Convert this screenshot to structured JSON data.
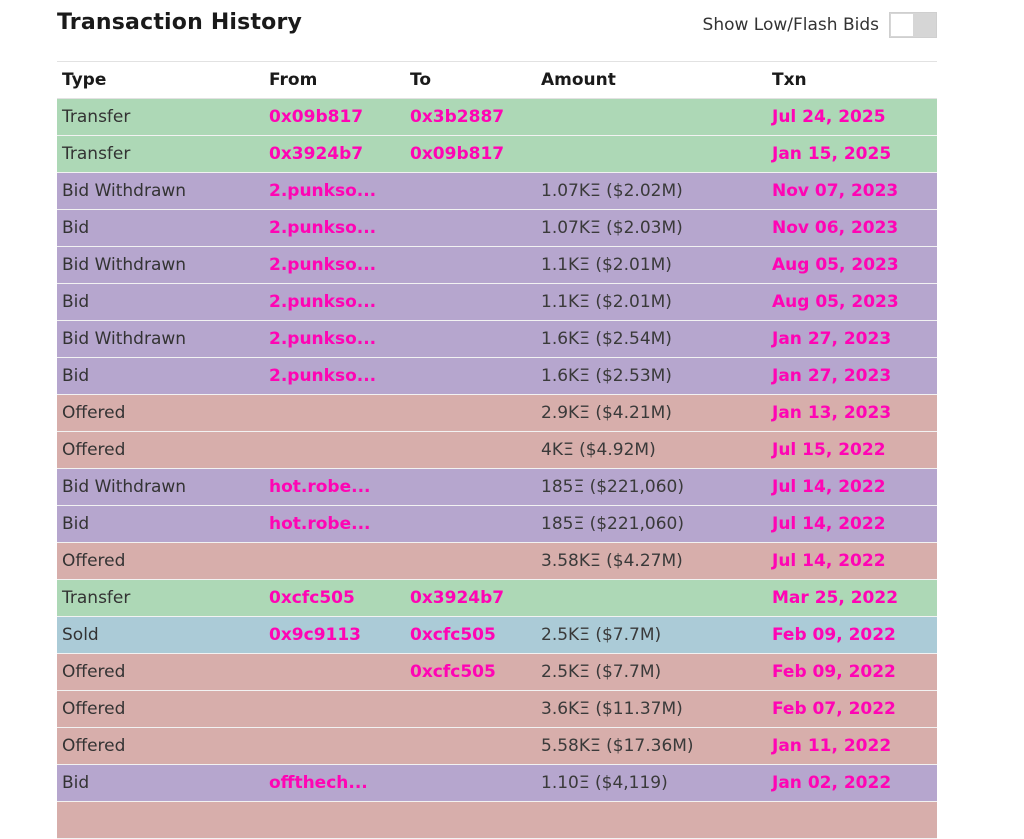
{
  "header": {
    "title": "Transaction History",
    "toggle_label": "Show Low/Flash Bids"
  },
  "table": {
    "columns": [
      "Type",
      "From",
      "To",
      "Amount",
      "Txn"
    ],
    "rows": [
      {
        "type": "Transfer",
        "from": "0x09b817",
        "to": "0x3b2887",
        "amount": "",
        "txn": "Jul 24, 2025",
        "color": "#add8b6"
      },
      {
        "type": "Transfer",
        "from": "0x3924b7",
        "to": "0x09b817",
        "amount": "",
        "txn": "Jan 15, 2025",
        "color": "#add8b6"
      },
      {
        "type": "Bid Withdrawn",
        "from": "2.punkso...",
        "to": "",
        "amount": "1.07KΞ ($2.02M)",
        "txn": "Nov 07, 2023",
        "color": "#b6a6ce"
      },
      {
        "type": "Bid",
        "from": "2.punkso...",
        "to": "",
        "amount": "1.07KΞ ($2.03M)",
        "txn": "Nov 06, 2023",
        "color": "#b6a6ce"
      },
      {
        "type": "Bid Withdrawn",
        "from": "2.punkso...",
        "to": "",
        "amount": "1.1KΞ ($2.01M)",
        "txn": "Aug 05, 2023",
        "color": "#b6a6ce"
      },
      {
        "type": "Bid",
        "from": "2.punkso...",
        "to": "",
        "amount": "1.1KΞ ($2.01M)",
        "txn": "Aug 05, 2023",
        "color": "#b6a6ce"
      },
      {
        "type": "Bid Withdrawn",
        "from": "2.punkso...",
        "to": "",
        "amount": "1.6KΞ ($2.54M)",
        "txn": "Jan 27, 2023",
        "color": "#b6a6ce"
      },
      {
        "type": "Bid",
        "from": "2.punkso...",
        "to": "",
        "amount": "1.6KΞ ($2.53M)",
        "txn": "Jan 27, 2023",
        "color": "#b6a6ce"
      },
      {
        "type": "Offered",
        "from": "",
        "to": "",
        "amount": "2.9KΞ ($4.21M)",
        "txn": "Jan 13, 2023",
        "color": "#d7aeab"
      },
      {
        "type": "Offered",
        "from": "",
        "to": "",
        "amount": "4KΞ ($4.92M)",
        "txn": "Jul 15, 2022",
        "color": "#d7aeab"
      },
      {
        "type": "Bid Withdrawn",
        "from": "hot.robe...",
        "to": "",
        "amount": "185Ξ ($221,060)",
        "txn": "Jul 14, 2022",
        "color": "#b6a6ce"
      },
      {
        "type": "Bid",
        "from": "hot.robe...",
        "to": "",
        "amount": "185Ξ ($221,060)",
        "txn": "Jul 14, 2022",
        "color": "#b6a6ce"
      },
      {
        "type": "Offered",
        "from": "",
        "to": "",
        "amount": "3.58KΞ ($4.27M)",
        "txn": "Jul 14, 2022",
        "color": "#d7aeab"
      },
      {
        "type": "Transfer",
        "from": "0xcfc505",
        "to": "0x3924b7",
        "amount": "",
        "txn": "Mar 25, 2022",
        "color": "#add8b6"
      },
      {
        "type": "Sold",
        "from": "0x9c9113",
        "to": "0xcfc505",
        "amount": "2.5KΞ ($7.7M)",
        "txn": "Feb 09, 2022",
        "color": "#abcbd7"
      },
      {
        "type": "Offered",
        "from": "",
        "to": "0xcfc505",
        "amount": "2.5KΞ ($7.7M)",
        "txn": "Feb 09, 2022",
        "color": "#d7aeab"
      },
      {
        "type": "Offered",
        "from": "",
        "to": "",
        "amount": "3.6KΞ ($11.37M)",
        "txn": "Feb 07, 2022",
        "color": "#d7aeab"
      },
      {
        "type": "Offered",
        "from": "",
        "to": "",
        "amount": "5.58KΞ ($17.36M)",
        "txn": "Jan 11, 2022",
        "color": "#d7aeab"
      },
      {
        "type": "Bid",
        "from": "offthech...",
        "to": "",
        "amount": "1.10Ξ ($4,119)",
        "txn": "Jan 02, 2022",
        "color": "#b6a6ce"
      },
      {
        "type": "",
        "from": "",
        "to": "",
        "amount": "",
        "txn": "",
        "color": "#d7aeab"
      }
    ]
  }
}
